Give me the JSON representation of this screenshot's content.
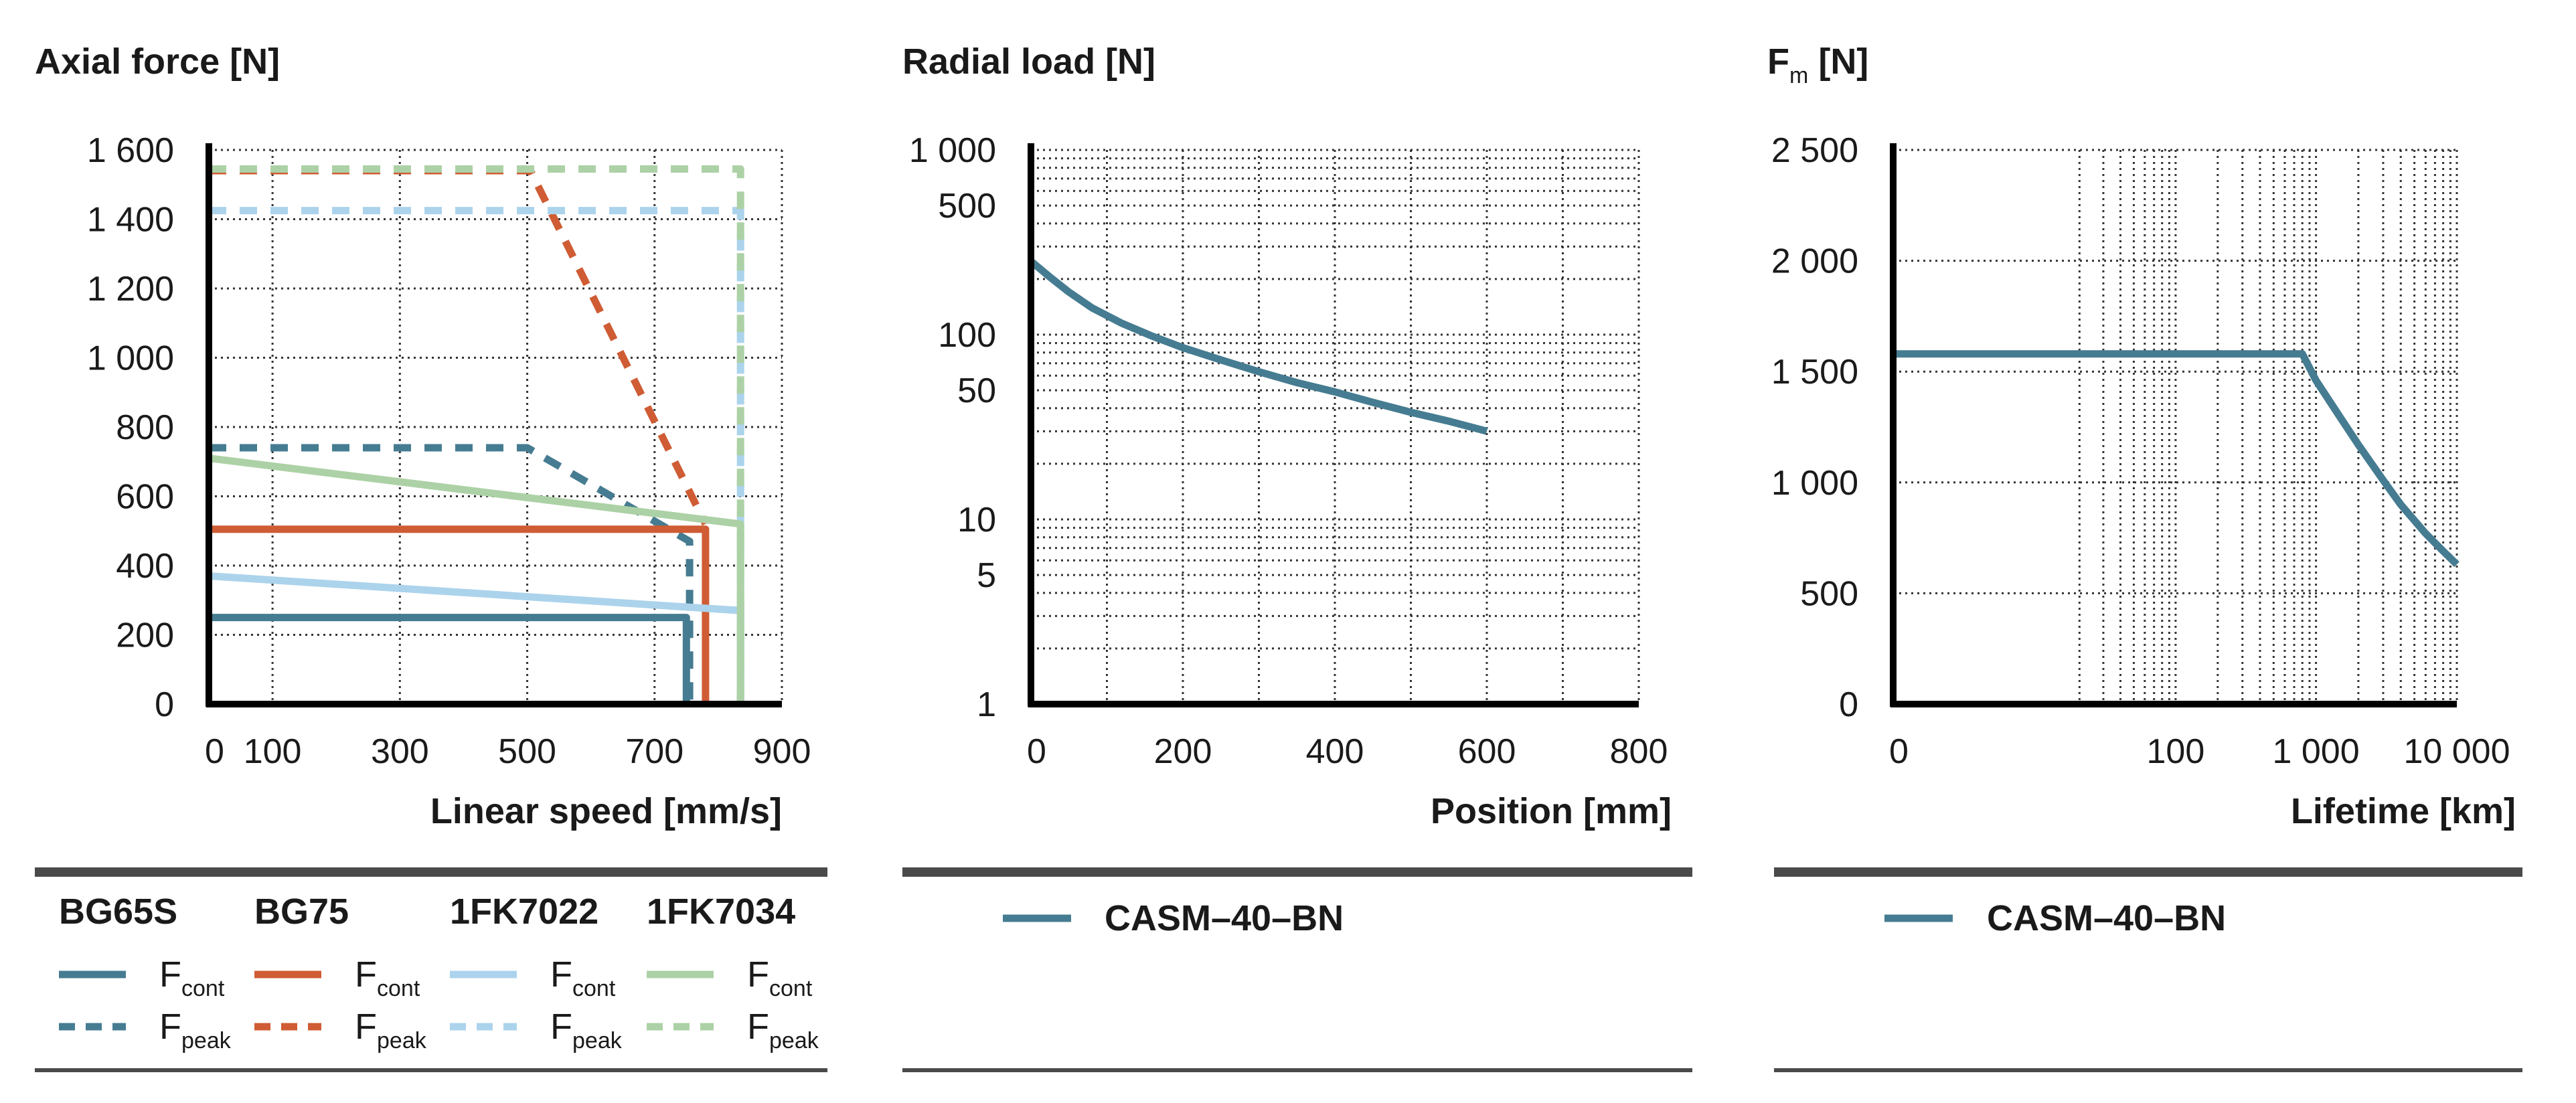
{
  "colors": {
    "BG65S": "#467c91",
    "BG75": "#cf5c34",
    "1FK7022": "#acd3ec",
    "1FK7034": "#add1a6",
    "CASM": "#467c91",
    "axis": "#000000",
    "grid": "#333333",
    "rule": "#4a4a4a"
  },
  "chart_data": [
    {
      "id": "axial",
      "type": "line",
      "title": "Axial force [N]",
      "xlabel": "Linear speed [mm/s]",
      "ylabel": "",
      "xscale": "linear",
      "yscale": "linear",
      "xlim": [
        0,
        900
      ],
      "ylim": [
        0,
        1600
      ],
      "xticks": [
        0,
        100,
        300,
        500,
        700,
        900
      ],
      "xtick_labels": [
        "0",
        "100",
        "300",
        "500",
        "700",
        "900"
      ],
      "xgrid": [
        0,
        100,
        300,
        500,
        700,
        900
      ],
      "yticks": [
        0,
        200,
        400,
        600,
        800,
        1000,
        1200,
        1400,
        1600
      ],
      "ytick_labels": [
        "0",
        "200",
        "400",
        "600",
        "800",
        "1 000",
        "1 200",
        "1 400",
        "1 600"
      ],
      "ygrid": [
        0,
        200,
        400,
        600,
        800,
        1000,
        1200,
        1400,
        1600
      ],
      "series": [
        {
          "name": "BG65S F_cont",
          "color_key": "BG65S",
          "dash": false,
          "x": [
            0,
            750,
            750
          ],
          "y": [
            250,
            250,
            0
          ]
        },
        {
          "name": "BG65S F_peak",
          "color_key": "BG65S",
          "dash": true,
          "x": [
            0,
            500,
            755,
            755
          ],
          "y": [
            740,
            740,
            470,
            0
          ]
        },
        {
          "name": "BG75 F_cont",
          "color_key": "BG75",
          "dash": false,
          "x": [
            0,
            780,
            780
          ],
          "y": [
            505,
            505,
            0
          ]
        },
        {
          "name": "BG75 F_peak",
          "color_key": "BG75",
          "dash": true,
          "x": [
            0,
            505,
            780
          ],
          "y": [
            1540,
            1540,
            520
          ]
        },
        {
          "name": "1FK7022 F_cont",
          "color_key": "1FK7022",
          "dash": false,
          "x": [
            0,
            835,
            835
          ],
          "y": [
            370,
            270,
            0
          ]
        },
        {
          "name": "1FK7022 F_peak",
          "color_key": "1FK7022",
          "dash": true,
          "x": [
            0,
            835,
            835
          ],
          "y": [
            1425,
            1425,
            0
          ]
        },
        {
          "name": "1FK7034 F_cont",
          "color_key": "1FK7034",
          "dash": false,
          "x": [
            0,
            835,
            835
          ],
          "y": [
            710,
            520,
            0
          ]
        },
        {
          "name": "1FK7034 F_peak",
          "color_key": "1FK7034",
          "dash": true,
          "x": [
            0,
            835,
            835
          ],
          "y": [
            1545,
            1545,
            0
          ]
        }
      ]
    },
    {
      "id": "radial",
      "type": "line",
      "title": "Radial load [N]",
      "xlabel": "Position [mm]",
      "ylabel": "",
      "xscale": "linear",
      "yscale": "log",
      "xlim": [
        0,
        800
      ],
      "ylim": [
        1,
        1000
      ],
      "xticks": [
        0,
        200,
        400,
        600,
        800
      ],
      "xtick_labels": [
        "0",
        "200",
        "400",
        "600",
        "800"
      ],
      "xgrid": [
        0,
        100,
        200,
        300,
        400,
        500,
        600,
        700,
        800
      ],
      "yticks": [
        1,
        5,
        10,
        50,
        100,
        500,
        1000
      ],
      "ytick_labels": [
        "1",
        "5",
        "10",
        "50",
        "100",
        "500",
        "1 000"
      ],
      "ygrid": [
        1,
        2,
        3,
        4,
        5,
        6,
        7,
        8,
        9,
        10,
        20,
        30,
        40,
        50,
        60,
        70,
        80,
        90,
        100,
        200,
        300,
        400,
        500,
        600,
        700,
        800,
        900,
        1000
      ],
      "series": [
        {
          "name": "CASM-40-BN",
          "color_key": "CASM",
          "dash": false,
          "x": [
            0,
            25,
            50,
            80,
            120,
            160,
            200,
            250,
            300,
            350,
            400,
            450,
            500,
            550,
            600
          ],
          "y": [
            250,
            205,
            170,
            140,
            115,
            98,
            85,
            73,
            63,
            55,
            49,
            43,
            38,
            34,
            30
          ]
        }
      ]
    },
    {
      "id": "lifetime",
      "type": "line",
      "title": "F",
      "title_sub": "m",
      "title_suffix": " [N]",
      "xlabel": "Lifetime [km]",
      "ylabel": "",
      "xscale": "log1",
      "yscale": "linear",
      "xlim": [
        0,
        10000
      ],
      "ylim": [
        0,
        2500
      ],
      "xticks": [
        0,
        100,
        1000,
        10000
      ],
      "xtick_labels": [
        "0",
        "100",
        "1 000",
        "10 000"
      ],
      "xgrid": [
        20,
        30,
        40,
        50,
        60,
        70,
        80,
        90,
        100,
        200,
        300,
        400,
        500,
        600,
        700,
        800,
        900,
        1000,
        2000,
        3000,
        4000,
        5000,
        6000,
        7000,
        8000,
        9000,
        10000
      ],
      "yticks": [
        0,
        500,
        1000,
        1500,
        2000,
        2500
      ],
      "ytick_labels": [
        "0",
        "500",
        "1 000",
        "1 500",
        "2 000",
        "2 500"
      ],
      "ygrid": [
        0,
        500,
        1000,
        1500,
        2000,
        2500
      ],
      "series": [
        {
          "name": "CASM-40-BN",
          "color_key": "CASM",
          "dash": false,
          "x": [
            0,
            800,
            1000,
            1500,
            2000,
            3000,
            4000,
            6000,
            8000,
            10000
          ],
          "y": [
            1580,
            1580,
            1460,
            1290,
            1170,
            1010,
            900,
            770,
            690,
            630
          ]
        }
      ]
    }
  ],
  "legends": {
    "axial": {
      "groups": [
        {
          "name": "BG65S",
          "color_key": "BG65S",
          "cont_label": "F",
          "cont_sub": "cont",
          "peak_label": "F",
          "peak_sub": "peak"
        },
        {
          "name": "BG75",
          "color_key": "BG75",
          "cont_label": "F",
          "cont_sub": "cont",
          "peak_label": "F",
          "peak_sub": "peak"
        },
        {
          "name": "1FK7022",
          "color_key": "1FK7022",
          "cont_label": "F",
          "cont_sub": "cont",
          "peak_label": "F",
          "peak_sub": "peak"
        },
        {
          "name": "1FK7034",
          "color_key": "1FK7034",
          "cont_label": "F",
          "cont_sub": "cont",
          "peak_label": "F",
          "peak_sub": "peak"
        }
      ]
    },
    "radial": {
      "label": "CASM–40–BN",
      "color_key": "CASM"
    },
    "lifetime": {
      "label": "CASM–40–BN",
      "color_key": "CASM"
    }
  }
}
